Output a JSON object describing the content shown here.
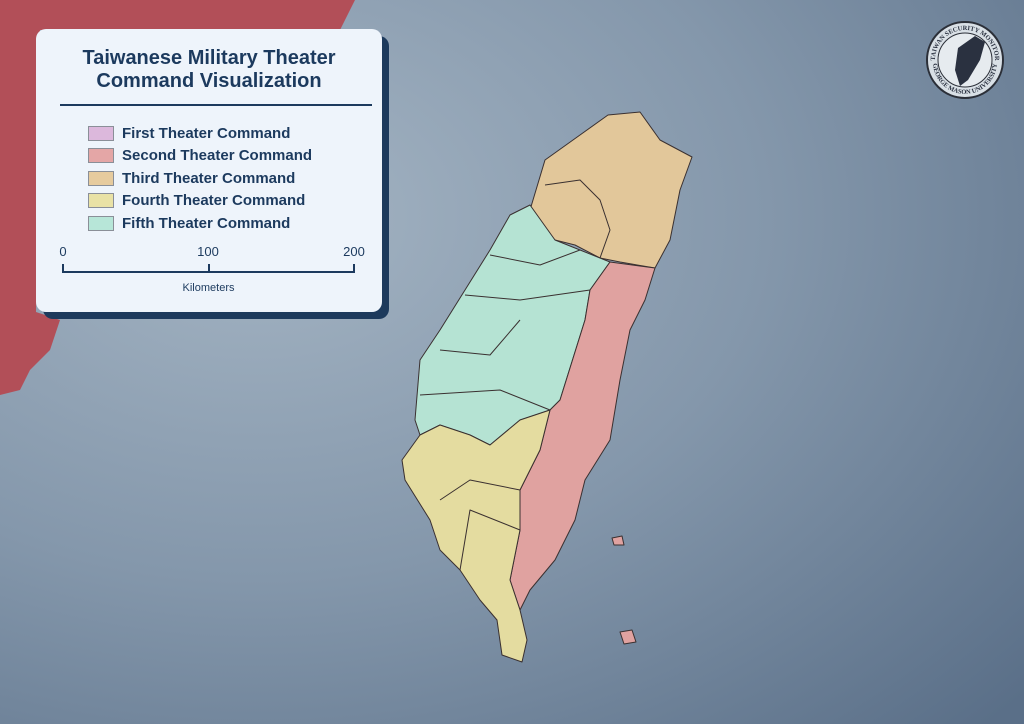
{
  "title_line1": "Taiwanese Military Theater",
  "title_line2": "Command Visualization",
  "legend": [
    {
      "label": "First Theater Command",
      "color": "#dcb8dc"
    },
    {
      "label": "Second Theater Command",
      "color": "#e4a6a6"
    },
    {
      "label": "Third Theater Command",
      "color": "#e6cb9e"
    },
    {
      "label": "Fourth Theater Command",
      "color": "#e9e2a6"
    },
    {
      "label": "Fifth Theater Command",
      "color": "#b7e6d8"
    }
  ],
  "scale": {
    "ticks": [
      "0",
      "100",
      "200"
    ],
    "unit": "Kilometers"
  },
  "logo": {
    "top_text": "TAIWAN SECURITY MONITOR",
    "bottom_text": "GEORGE MASON UNIVERSITY"
  },
  "colors": {
    "ocean": "#8ea2b6",
    "ocean_deep": "#5d738d",
    "mainland": "#b24f58",
    "frame": "#1c3a5e"
  }
}
